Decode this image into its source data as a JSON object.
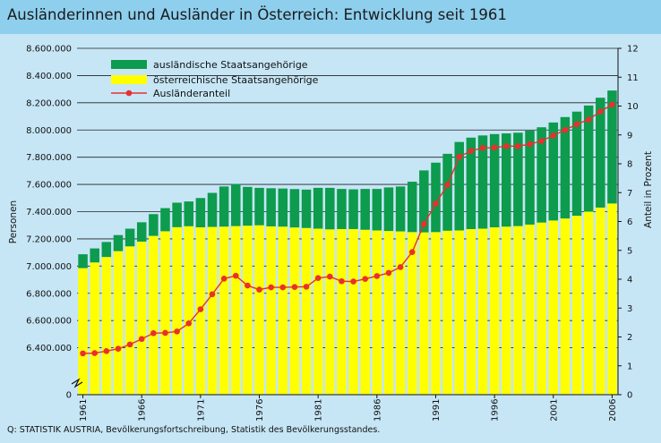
{
  "title": "Ausländerinnen und Ausländer in Österreich: Entwicklung seit 1961",
  "source": "Q: STATISTIK AUSTRIA, Bevölkerungsfortschreibung, Statistik des Bevölkerungsstandes.",
  "colors": {
    "background": "#c6e6f6",
    "title_bar": "#8ecfee",
    "foreign": "#0d9b4d",
    "austrian": "#ffff00",
    "share_line": "#e8302e",
    "grid": "#222222"
  },
  "chart_data": {
    "type": "bar",
    "stacked": true,
    "secondary_type": "line",
    "years": [
      1961,
      1962,
      1963,
      1964,
      1965,
      1966,
      1967,
      1968,
      1969,
      1970,
      1971,
      1972,
      1973,
      1974,
      1975,
      1976,
      1977,
      1978,
      1979,
      1980,
      1981,
      1982,
      1983,
      1984,
      1985,
      1986,
      1987,
      1988,
      1989,
      1990,
      1991,
      1992,
      1993,
      1994,
      1995,
      1996,
      1997,
      1998,
      1999,
      2000,
      2001,
      2002,
      2003,
      2004,
      2005,
      2006
    ],
    "x_tick_labels": [
      "1961",
      "1966",
      "1971",
      "1976",
      "1981",
      "1986",
      "1991",
      "1996",
      "2001",
      "2006"
    ],
    "series": [
      {
        "name": "ausländische Staatsangehörige",
        "color": "#0d9b4d",
        "values": [
          102000,
          103000,
          110000,
          118000,
          130000,
          142000,
          160000,
          170000,
          180000,
          182000,
          215000,
          250000,
          295000,
          310000,
          285000,
          275000,
          280000,
          280000,
          282000,
          282000,
          300000,
          305000,
          295000,
          292000,
          300000,
          305000,
          320000,
          330000,
          370000,
          455000,
          510000,
          565000,
          650000,
          672000,
          685000,
          685000,
          685000,
          686000,
          690000,
          700000,
          720000,
          745000,
          765000,
          780000,
          807000,
          830000
        ]
      },
      {
        "name": "österreichische Staatsangehörige",
        "color": "#ffff00",
        "values": [
          6985000,
          7027000,
          7067000,
          7110000,
          7145000,
          7180000,
          7222000,
          7256000,
          7286000,
          7293000,
          7285000,
          7288000,
          7290000,
          7294000,
          7297000,
          7300000,
          7292000,
          7290000,
          7284000,
          7280000,
          7275000,
          7270000,
          7272000,
          7272000,
          7267000,
          7262000,
          7258000,
          7255000,
          7250000,
          7248000,
          7250000,
          7260000,
          7262000,
          7272000,
          7275000,
          7285000,
          7290000,
          7294000,
          7305000,
          7320000,
          7335000,
          7350000,
          7370000,
          7400000,
          7430000,
          7460000
        ]
      },
      {
        "name": "Ausländeranteil",
        "type": "line",
        "axis": "right",
        "color": "#e8302e",
        "values": [
          1.43,
          1.44,
          1.51,
          1.59,
          1.74,
          1.93,
          2.13,
          2.14,
          2.19,
          2.47,
          2.96,
          3.48,
          4.02,
          4.12,
          3.78,
          3.64,
          3.72,
          3.72,
          3.73,
          3.74,
          4.04,
          4.09,
          3.93,
          3.92,
          4.01,
          4.11,
          4.22,
          4.42,
          4.94,
          5.91,
          6.62,
          7.27,
          8.24,
          8.45,
          8.55,
          8.56,
          8.61,
          8.61,
          8.68,
          8.79,
          8.98,
          9.17,
          9.37,
          9.53,
          9.81,
          10.05
        ]
      }
    ],
    "y_left": {
      "label": "Personen",
      "break_at_zero": true,
      "zero_label": "0",
      "range": [
        6200000,
        8600000
      ],
      "ticks": [
        6400000,
        6600000,
        6800000,
        7000000,
        7200000,
        7400000,
        7600000,
        7800000,
        8000000,
        8200000,
        8400000,
        8600000
      ],
      "tick_labels": [
        "6.400.000",
        "6.600.000",
        "6.800.000",
        "7.000.000",
        "7.200.000",
        "7.400.000",
        "7.600.000",
        "7.800.000",
        "8.000.000",
        "8.200.000",
        "8.400.000",
        "8.600.000"
      ]
    },
    "y_right": {
      "label": "Anteil in Prozent",
      "range": [
        0,
        12
      ],
      "ticks": [
        0,
        1,
        2,
        3,
        4,
        5,
        6,
        7,
        8,
        9,
        10,
        11,
        12
      ],
      "tick_labels": [
        "0",
        "1",
        "2",
        "3",
        "4",
        "5",
        "6",
        "7",
        "8",
        "9",
        "10",
        "11",
        "12"
      ]
    },
    "legend_position": "top-left",
    "grid": true
  }
}
